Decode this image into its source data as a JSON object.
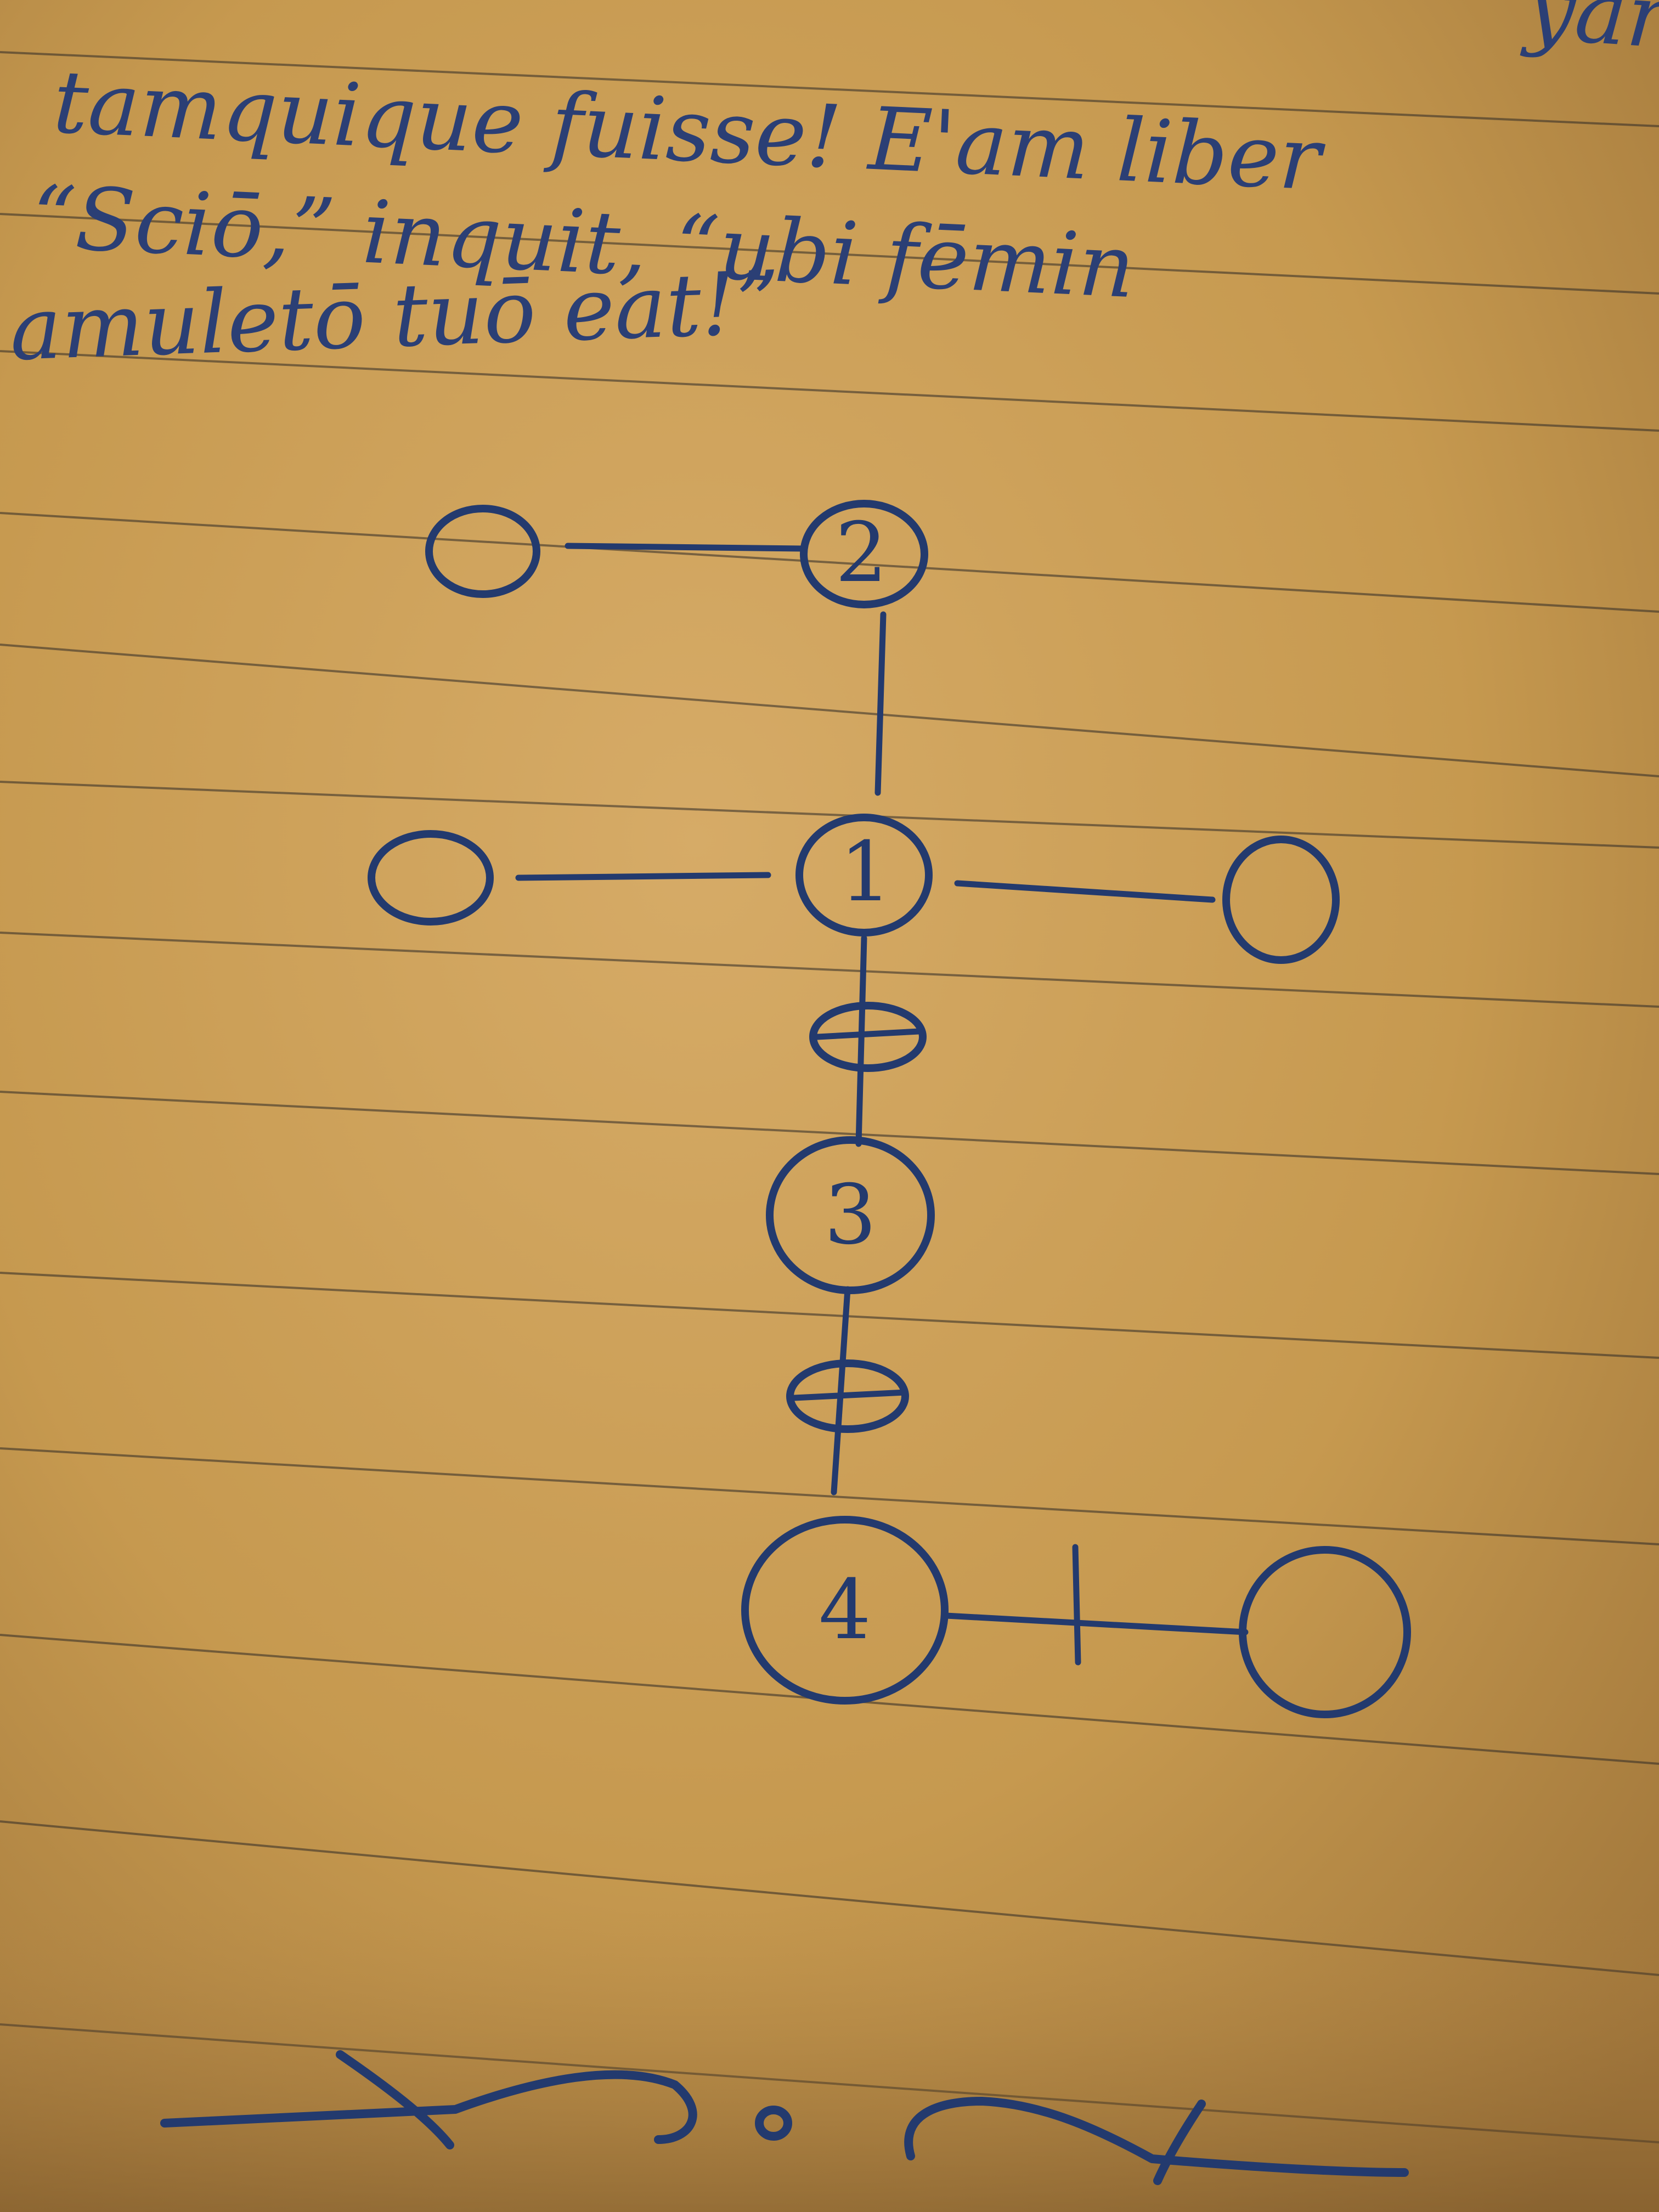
{
  "handwriting": {
    "line_1_partial": "yart",
    "line_2": "tamquique fuisse! E'am liber",
    "line_3": "“Sciō,” inquit, “ubi fēmin",
    "line_4": "amuletō tuō eat!”"
  },
  "diagram": {
    "node_labels": {
      "top": "2",
      "center": "1",
      "middle": "3",
      "bottom": "4"
    },
    "edge_marks": {
      "center_to_middle": "⊖",
      "middle_to_bottom": "⊕",
      "bottom_to_right": "+"
    }
  },
  "colors": {
    "ink": "#233a6e",
    "paper": "#c79c5a",
    "rule_lines": "#2f2a26"
  }
}
